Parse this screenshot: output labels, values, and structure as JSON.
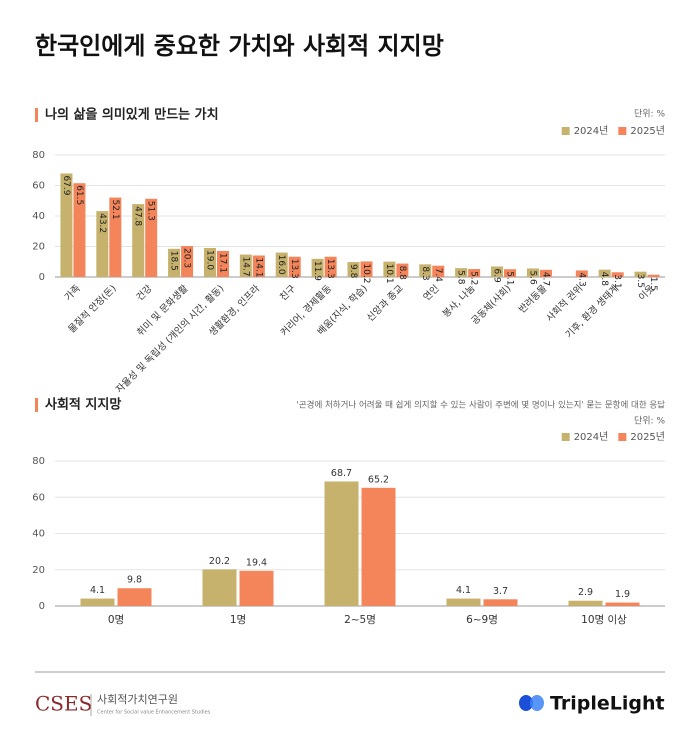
{
  "title": "한국인에게 중요한 가치와 사회적 지지망",
  "chart_data": [
    {
      "type": "bar",
      "title": "나의 삶을 의미있게 만드는 가치",
      "unit": "단위: %",
      "categories": [
        "가족",
        "물질적 안정(돈)",
        "건강",
        "취미 및 문화생활",
        "자율성 및 독립성 (개인의 시간, 활동)",
        "생활환경, 인프라",
        "친구",
        "커리어, 경제활동",
        "배움(지식, 학습)",
        "신앙과 종교",
        "연인",
        "봉사, 나눔",
        "공동체(사회)",
        "반려동물",
        "사회적 권위",
        "기후, 환경 생태계",
        "이웃"
      ],
      "series": [
        {
          "name": "2024년",
          "color": "#c6b26c",
          "values": [
            67.9,
            43.2,
            47.8,
            18.5,
            19.0,
            14.7,
            16.0,
            11.9,
            9.8,
            10.1,
            8.3,
            5.8,
            6.9,
            5.6,
            null,
            4.8,
            3.5
          ],
          "value_labels": [
            "67.9",
            "43.2",
            "47.8",
            "18.5",
            "19.0",
            "14.7",
            "16.0",
            "11.9",
            "9.8",
            "10.1",
            "8.3",
            "5.8",
            "6.9",
            "5.6",
            null,
            "4.8",
            "3.5"
          ]
        },
        {
          "name": "2025년",
          "color": "#f4845a",
          "values": [
            61.5,
            52.1,
            51.3,
            20.3,
            17.1,
            14.1,
            13.3,
            13.3,
            10.2,
            8.8,
            7.4,
            5.2,
            5.1,
            4.7,
            4.3,
            3.1,
            1.5
          ],
          "value_labels": [
            "61.5",
            "52.1",
            "51.3",
            "20.3",
            "17.1",
            "14.1",
            "13.3",
            "13.3",
            "10.2",
            "8.8",
            "7.4",
            "5.2",
            "5.1",
            "4.7",
            "4.3",
            "3.1",
            "1.5"
          ]
        }
      ],
      "ylim": [
        0,
        80
      ],
      "yticks": [
        0,
        20,
        40,
        60,
        80
      ],
      "grid": true,
      "legend": "top-right"
    },
    {
      "type": "bar",
      "title": "사회적 지지망",
      "note": "'곤경에 처하거나 어려울 때 쉽게 의지할 수 있는 사람이 주변에 몇 명이나 있는지' 묻는 문항에 대한 응답",
      "unit": "단위: %",
      "categories": [
        "0명",
        "1명",
        "2~5명",
        "6~9명",
        "10명 이상"
      ],
      "series": [
        {
          "name": "2024년",
          "color": "#c6b26c",
          "values": [
            4.1,
            20.2,
            68.7,
            4.1,
            2.9
          ]
        },
        {
          "name": "2025년",
          "color": "#f4845a",
          "values": [
            9.8,
            19.4,
            65.2,
            3.7,
            1.9
          ]
        }
      ],
      "ylim": [
        0,
        80
      ],
      "yticks": [
        0,
        20,
        40,
        60,
        80
      ],
      "grid": true,
      "legend": "top-right"
    }
  ],
  "footer": {
    "logo": "CSES",
    "org": "사회적가치연구원",
    "org_en": "Center for Social value Enhancement Studies",
    "brand": "TripleLight"
  }
}
